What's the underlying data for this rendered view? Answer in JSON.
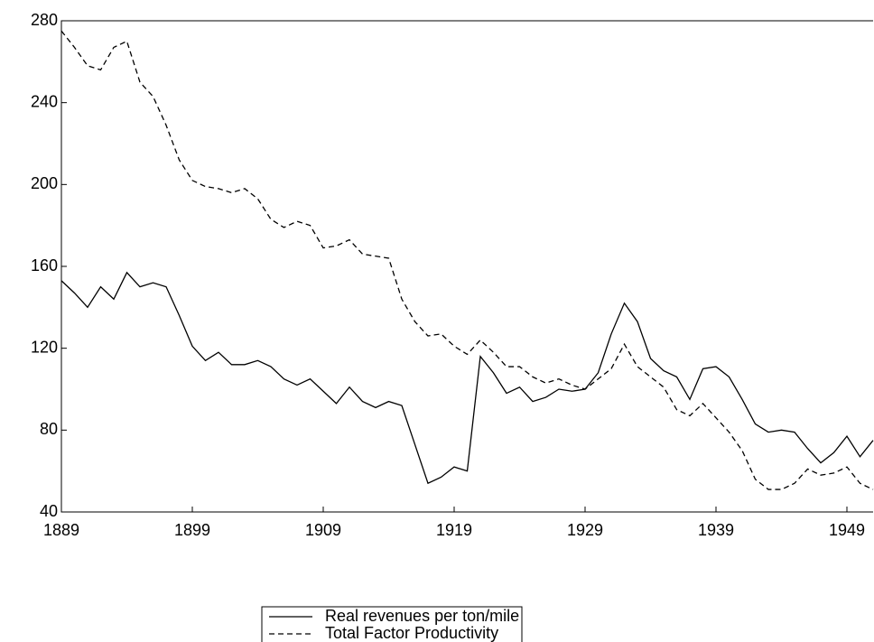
{
  "chart_data": {
    "type": "line",
    "x": [
      1889,
      1890,
      1891,
      1892,
      1893,
      1894,
      1895,
      1896,
      1897,
      1898,
      1899,
      1900,
      1901,
      1902,
      1903,
      1904,
      1905,
      1906,
      1907,
      1908,
      1909,
      1910,
      1911,
      1912,
      1913,
      1914,
      1915,
      1916,
      1917,
      1918,
      1919,
      1920,
      1921,
      1922,
      1923,
      1924,
      1925,
      1926,
      1927,
      1928,
      1929,
      1930,
      1931,
      1932,
      1933,
      1934,
      1935,
      1936,
      1937,
      1938,
      1939,
      1940,
      1941,
      1942,
      1943,
      1944,
      1945,
      1946,
      1947,
      1948,
      1949,
      1950,
      1951
    ],
    "series": [
      {
        "name": "Real revenues per ton/mile",
        "color": "#000000",
        "line_style": "solid",
        "values": [
          153,
          147,
          140,
          150,
          144,
          157,
          150,
          152,
          150,
          136,
          121,
          114,
          118,
          112,
          112,
          114,
          111,
          105,
          102,
          105,
          99,
          93,
          101,
          94,
          91,
          94,
          92,
          73,
          54,
          57,
          62,
          60,
          116,
          108,
          98,
          101,
          94,
          96,
          100,
          99,
          100,
          108,
          127,
          142,
          133,
          115,
          109,
          106,
          95,
          110,
          111,
          106,
          95,
          83,
          79,
          80,
          79,
          71,
          64,
          69,
          77,
          67,
          75
        ]
      },
      {
        "name": "Total Factor Productivity",
        "color": "#000000",
        "line_style": "dashed",
        "values": [
          275,
          267,
          258,
          256,
          267,
          270,
          250,
          243,
          229,
          212,
          202,
          199,
          198,
          196,
          198,
          193,
          183,
          179,
          182,
          180,
          169,
          170,
          173,
          166,
          165,
          164,
          144,
          133,
          126,
          127,
          121,
          117,
          124,
          118,
          111,
          111,
          106,
          103,
          105,
          102,
          100,
          105,
          110,
          122,
          111,
          106,
          101,
          90,
          87,
          93,
          86,
          79,
          70,
          56,
          51,
          51,
          54,
          61,
          58,
          59,
          62,
          54,
          51
        ]
      }
    ],
    "xlim": [
      1889,
      1951
    ],
    "xticks": [
      1889,
      1899,
      1909,
      1919,
      1929,
      1939,
      1949
    ],
    "ylim": [
      40,
      280
    ],
    "yticks": [
      40,
      80,
      120,
      160,
      200,
      240,
      280
    ],
    "grid": false
  }
}
